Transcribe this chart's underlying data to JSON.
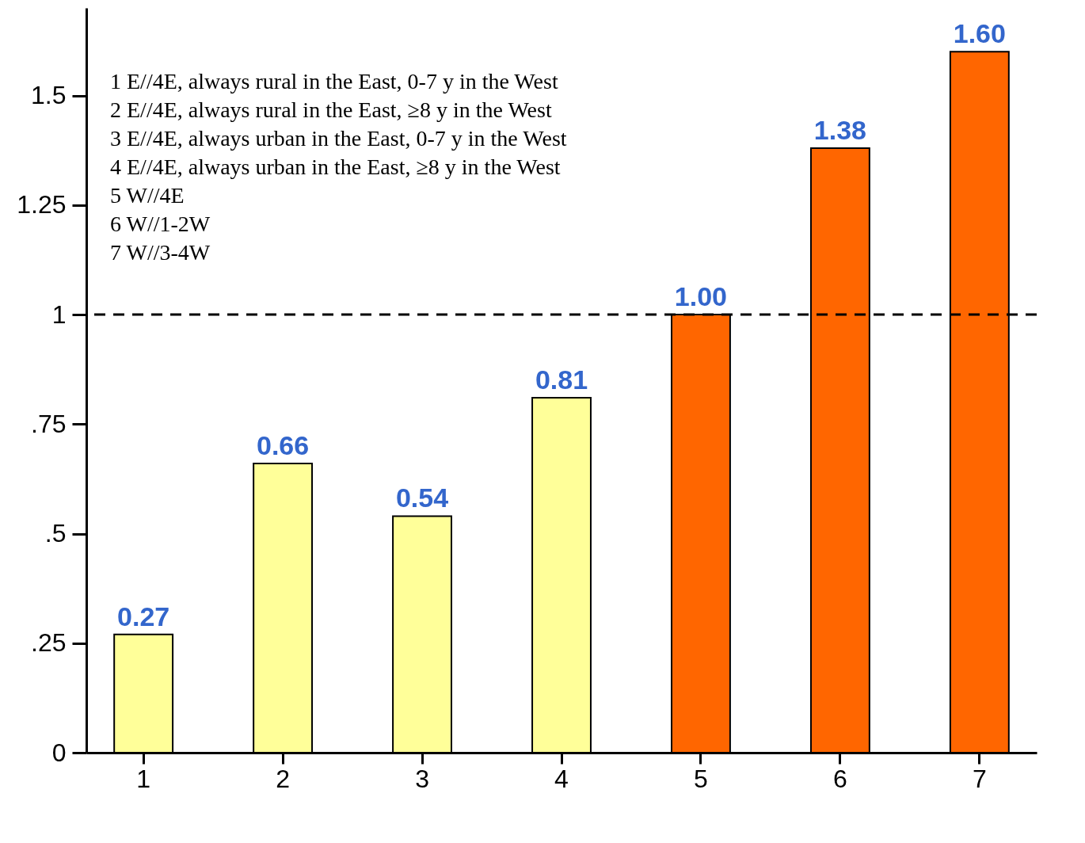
{
  "chart_data": {
    "type": "bar",
    "categories": [
      "1",
      "2",
      "3",
      "4",
      "5",
      "6",
      "7"
    ],
    "values": [
      0.27,
      0.66,
      0.54,
      0.81,
      1.0,
      1.38,
      1.6
    ],
    "value_labels": [
      "0.27",
      "0.66",
      "0.54",
      "0.81",
      "1.00",
      "1.38",
      "1.60"
    ],
    "colors": [
      "#ffff99",
      "#ffff99",
      "#ffff99",
      "#ffff99",
      "#ff6600",
      "#ff6600",
      "#ff6600"
    ],
    "ylim": [
      0,
      1.7
    ],
    "yticks": [
      0,
      {
        "value": 0.25,
        "label": ".25"
      },
      {
        "value": 0.5,
        "label": ".5"
      },
      {
        "value": 0.75,
        "label": ".75"
      },
      1,
      1.25,
      1.5
    ],
    "ref_lines": [
      {
        "axis": "y",
        "value": 1,
        "line_style": "dashed",
        "color": "#000000"
      }
    ],
    "annotations": [
      "1 E//4E, always rural in the East, 0-7 y in the West",
      "2 E//4E, always rural in the East, ≥8 y in the West",
      "3 E//4E, always urban in the East, 0-7 y in the West",
      "4 E//4E, always urban in the East, ≥8 y in the West",
      "5 W//4E",
      "6 W//1-2W",
      "7 W//3-4W"
    ],
    "grid": false
  }
}
